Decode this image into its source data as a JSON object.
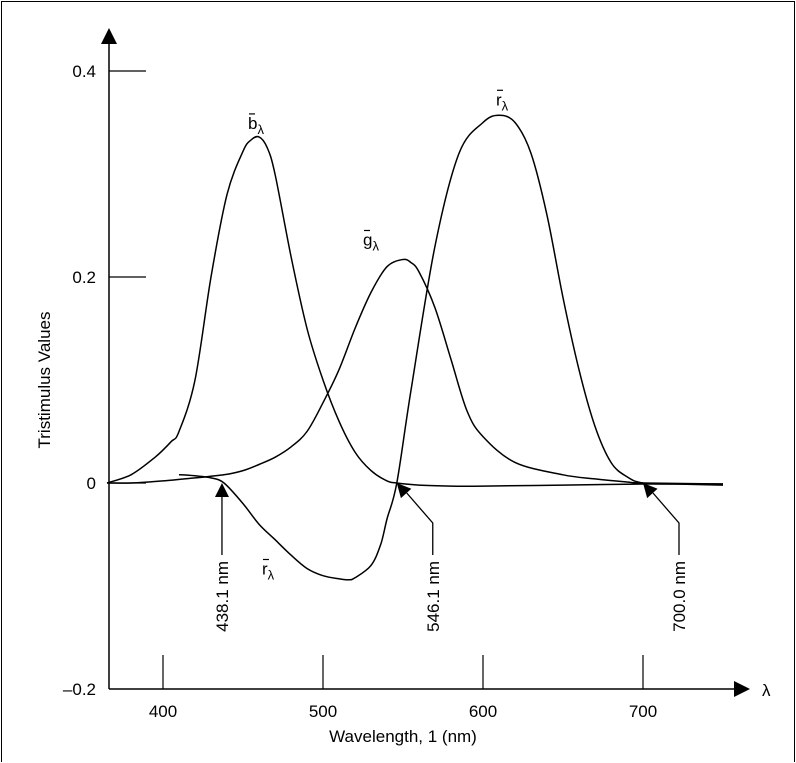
{
  "chart_data": {
    "type": "line",
    "title": "",
    "xlabel": "Wavelength, 1 (nm)",
    "ylabel": "Tristimulus Values",
    "x_axis_symbol": "λ",
    "xlim": [
      365,
      750
    ],
    "ylim": [
      -0.2,
      0.42
    ],
    "x_ticks": [
      400,
      500,
      600,
      700
    ],
    "x_tick_labels": [
      "400",
      "500",
      "600",
      "700"
    ],
    "y_ticks": [
      -0.2,
      0,
      0.2,
      0.4
    ],
    "y_tick_labels": [
      "–0.2",
      "0",
      "0.2",
      "0.4"
    ],
    "grid": false,
    "series": [
      {
        "name": "b̄λ",
        "label_base": "b",
        "x": [
          365,
          380,
          395,
          405,
          410,
          420,
          430,
          440,
          450,
          455,
          460,
          465,
          470,
          480,
          490,
          500,
          510,
          520,
          530,
          540,
          546,
          560,
          580,
          600,
          650,
          700,
          750
        ],
        "y": [
          0.0,
          0.008,
          0.025,
          0.04,
          0.05,
          0.1,
          0.2,
          0.28,
          0.322,
          0.333,
          0.336,
          0.326,
          0.3,
          0.22,
          0.15,
          0.1,
          0.06,
          0.03,
          0.012,
          0.002,
          0.0,
          -0.002,
          -0.003,
          -0.003,
          -0.002,
          -0.001,
          -0.001
        ]
      },
      {
        "name": "ḡλ",
        "label_base": "g",
        "x": [
          365,
          380,
          400,
          420,
          438,
          450,
          460,
          470,
          480,
          490,
          500,
          510,
          520,
          530,
          540,
          550,
          555,
          560,
          570,
          580,
          590,
          600,
          620,
          650,
          670,
          690,
          700,
          750
        ],
        "y": [
          0.0,
          0.0,
          0.002,
          0.005,
          0.008,
          0.012,
          0.018,
          0.025,
          0.035,
          0.05,
          0.078,
          0.11,
          0.15,
          0.185,
          0.21,
          0.217,
          0.214,
          0.205,
          0.17,
          0.12,
          0.07,
          0.045,
          0.02,
          0.008,
          0.004,
          0.001,
          0.0,
          -0.001
        ]
      },
      {
        "name": "r̄λ",
        "label_base": "r",
        "x": [
          410,
          420,
          430,
          438.1,
          450,
          460,
          470,
          480,
          490,
          500,
          510,
          516,
          520,
          530,
          536,
          540,
          546.1,
          555,
          570,
          585,
          600,
          610,
          620,
          630,
          640,
          650,
          660,
          670,
          680,
          690,
          700,
          720,
          750
        ],
        "y": [
          0.008,
          0.007,
          0.005,
          0.0,
          -0.02,
          -0.04,
          -0.055,
          -0.07,
          -0.083,
          -0.09,
          -0.093,
          -0.094,
          -0.092,
          -0.08,
          -0.06,
          -0.035,
          0.0,
          0.09,
          0.23,
          0.32,
          0.35,
          0.357,
          0.35,
          0.32,
          0.26,
          0.18,
          0.11,
          0.055,
          0.02,
          0.006,
          0.0,
          -0.001,
          -0.002
        ]
      }
    ],
    "annotations": [
      {
        "text": "438.1 nm",
        "x": 438.1
      },
      {
        "text": "546.1 nm",
        "x": 546.1
      },
      {
        "text": "700.0 nm",
        "x": 700.0
      }
    ]
  }
}
